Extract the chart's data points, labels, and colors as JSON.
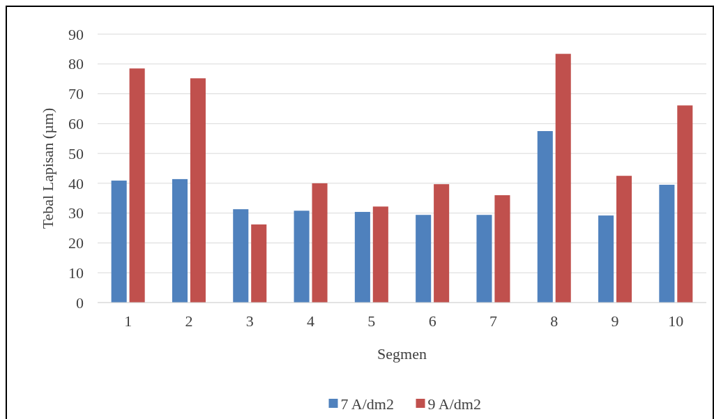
{
  "chart_data": {
    "type": "bar",
    "xlabel": "Segmen",
    "ylabel": "Tebal Lapisan (µm)",
    "categories": [
      "1",
      "2",
      "3",
      "4",
      "5",
      "6",
      "7",
      "8",
      "9",
      "10"
    ],
    "series": [
      {
        "name": "7 A/dm2",
        "color": "#4f81bd",
        "values": [
          40.9,
          41.4,
          31.3,
          30.8,
          30.4,
          29.4,
          29.4,
          57.5,
          29.2,
          39.5
        ]
      },
      {
        "name": "9 A/dm2",
        "color": "#c0504d",
        "values": [
          78.5,
          75.2,
          26.2,
          40.0,
          32.2,
          39.7,
          36.0,
          83.4,
          42.5,
          66.1
        ]
      }
    ],
    "ylim": [
      0,
      90
    ],
    "yticks": [
      0,
      10,
      20,
      30,
      40,
      50,
      60,
      70,
      80,
      90
    ],
    "grid": "y",
    "legend": "bottom"
  }
}
